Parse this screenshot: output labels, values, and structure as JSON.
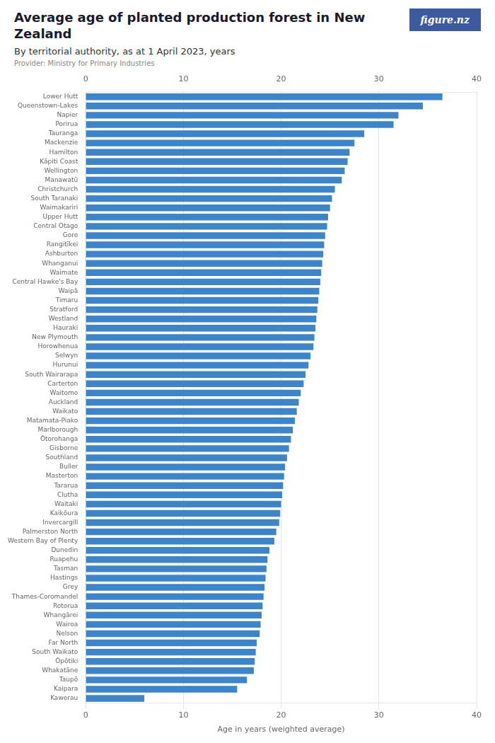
{
  "chart_data": {
    "type": "bar",
    "orientation": "horizontal",
    "title": "Average age of planted production forest in New Zealand",
    "subtitle": "By territorial authority, as at 1 April 2023, years",
    "annotations": [
      "Provider: Ministry for Primary Industries",
      "figure.nz"
    ],
    "xlabel": "Age in years (weighted average)",
    "xlim": [
      0,
      40
    ],
    "xticks": [
      0,
      10,
      20,
      30,
      40
    ],
    "color": "#3d85c8",
    "grid": true,
    "categories": [
      "Lower Hutt",
      "Queenstown-Lakes",
      "Napier",
      "Porirua",
      "Tauranga",
      "Mackenzie",
      "Hamilton",
      "Kāpiti Coast",
      "Wellington",
      "Manawatū",
      "Christchurch",
      "South Taranaki",
      "Waimakariri",
      "Upper Hutt",
      "Central Otago",
      "Gore",
      "Rangitīkei",
      "Ashburton",
      "Whanganui",
      "Waimate",
      "Central Hawke's Bay",
      "Waipā",
      "Timaru",
      "Stratford",
      "Westland",
      "Hauraki",
      "New Plymouth",
      "Horowhenua",
      "Selwyn",
      "Hurunui",
      "South Wairarapa",
      "Carterton",
      "Waitomo",
      "Auckland",
      "Waikato",
      "Matamata-Piako",
      "Marlborough",
      "Ōtorohanga",
      "Gisborne",
      "Southland",
      "Buller",
      "Masterton",
      "Tararua",
      "Clutha",
      "Waitaki",
      "Kaikōura",
      "Invercargill",
      "Palmerston North",
      "Western Bay of Plenty",
      "Dunedin",
      "Ruapehu",
      "Tasman",
      "Hastings",
      "Grey",
      "Thames-Coromandel",
      "Rotorua",
      "Whangārei",
      "Wairoa",
      "Nelson",
      "Far North",
      "South Waikato",
      "Ōpōtiki",
      "Whakatāne",
      "Taupō",
      "Kaipara",
      "Kawerau"
    ],
    "values": [
      36.5,
      34.5,
      32.0,
      31.5,
      28.5,
      27.5,
      27.0,
      26.8,
      26.5,
      26.2,
      25.5,
      25.2,
      25.0,
      24.8,
      24.7,
      24.5,
      24.4,
      24.3,
      24.2,
      24.1,
      24.0,
      23.9,
      23.8,
      23.7,
      23.6,
      23.5,
      23.4,
      23.3,
      23.0,
      22.8,
      22.5,
      22.3,
      22.0,
      21.8,
      21.6,
      21.4,
      21.2,
      21.0,
      20.8,
      20.6,
      20.4,
      20.3,
      20.2,
      20.1,
      20.0,
      19.9,
      19.8,
      19.5,
      19.3,
      18.8,
      18.6,
      18.5,
      18.4,
      18.3,
      18.2,
      18.1,
      18.0,
      17.9,
      17.8,
      17.5,
      17.4,
      17.3,
      17.2,
      16.5,
      15.5,
      6.0
    ]
  }
}
